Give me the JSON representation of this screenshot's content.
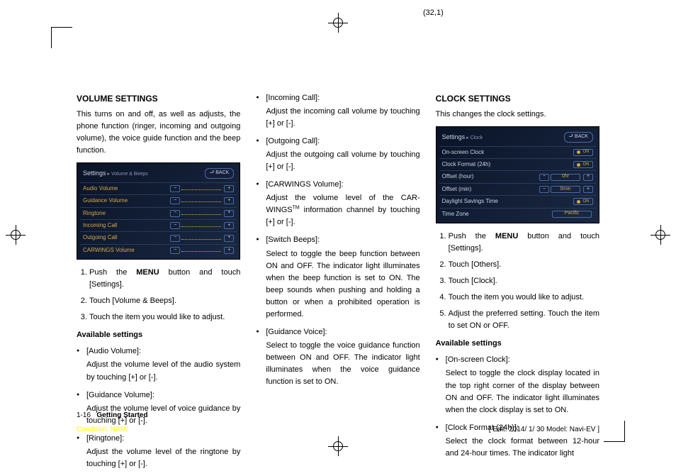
{
  "page_ref": "(32,1)",
  "col1": {
    "h": "VOLUME SETTINGS",
    "intro": "This turns on and off, as well as adjusts, the phone function (ringer, incoming and outgoing volume), the voice guide function and the beep function.",
    "ss": {
      "title": "Settings",
      "crumb": "▸ Volume & Beeps",
      "back": "⮐ BACK",
      "rows": [
        {
          "label": "Audio Volume"
        },
        {
          "label": "Guidance Volume"
        },
        {
          "label": "Ringtone"
        },
        {
          "label": "Incoming Call"
        },
        {
          "label": "Outgoing Call"
        },
        {
          "label": "CARWINGS Volume"
        }
      ]
    },
    "steps": [
      "Push the MENU button and touch [Settings].",
      "Touch [Volume & Beeps].",
      "Touch the item you would like to adjust."
    ],
    "avail_h": "Available settings",
    "bullets": [
      {
        "label": "[Audio Volume]:",
        "desc": "Adjust the volume level of the audio system by touching [+] or [-]."
      },
      {
        "label": "[Guidance Volume]:",
        "desc": "Adjust the volume level of voice guidance by touching [+] or [-]."
      },
      {
        "label": "[Ringtone]:",
        "desc": "Adjust the volume level of the ringtone by touching [+] or [-]."
      }
    ]
  },
  "col2": {
    "bullets": [
      {
        "label": "[Incoming Call]:",
        "desc": "Adjust the incoming call volume by touching [+] or [-]."
      },
      {
        "label": "[Outgoing Call]:",
        "desc": "Adjust the outgoing call volume by touching [+] or [-]."
      },
      {
        "label": "[CARWINGS Volume]:",
        "desc": "Adjust the volume level of the CARWINGSTM information channel by touching [+] or [-]."
      },
      {
        "label": "[Switch Beeps]:",
        "desc": "Select to toggle the beep function between ON and OFF. The indicator light illuminates when the beep function is set to ON. The beep sounds when pushing and holding a button or when a prohibited operation is performed."
      },
      {
        "label": "[Guidance Voice]:",
        "desc": "Select to toggle the voice guidance function between ON and OFF. The indicator light illuminates when the voice guidance function is set to ON."
      }
    ]
  },
  "col3": {
    "h": "CLOCK SETTINGS",
    "intro": "This changes the clock settings.",
    "ss": {
      "title": "Settings",
      "crumb": "▸ Clock",
      "back": "⮐ BACK",
      "rows": [
        {
          "type": "on",
          "label": "On-screen Clock",
          "val": "ON"
        },
        {
          "type": "on",
          "label": "Clock Format (24h)",
          "val": "ON"
        },
        {
          "type": "pm",
          "label": "Offset (hour)",
          "val": "0hr"
        },
        {
          "type": "pm",
          "label": "Offset (min)",
          "val": "0min"
        },
        {
          "type": "on",
          "label": "Daylight Savings Time",
          "val": "ON"
        },
        {
          "type": "val",
          "label": "Time Zone",
          "val": "Pacific"
        }
      ]
    },
    "steps": [
      "Push the MENU button and touch [Settings].",
      "Touch [Others].",
      "Touch [Clock].",
      "Touch the item you would like to adjust.",
      "Adjust the preferred setting. Touch the item to set ON or OFF."
    ],
    "avail_h": "Available settings",
    "bullets": [
      {
        "label": "[On-screen Clock]:",
        "desc": "Select to toggle the clock display located in the top right corner of the display between ON and OFF. The indicator light illuminates when the clock display is set to ON."
      },
      {
        "label": "[Clock Format (24h)]:",
        "desc": "Select the clock format between 12-hour and 24-hour times. The indicator light"
      }
    ]
  },
  "footer": {
    "page": "1-16",
    "section": "Getting Started",
    "condition": "Condition: NAM/",
    "edit": "[ Edit: 2014/ 1/ 30   Model: Navi-EV ]"
  }
}
